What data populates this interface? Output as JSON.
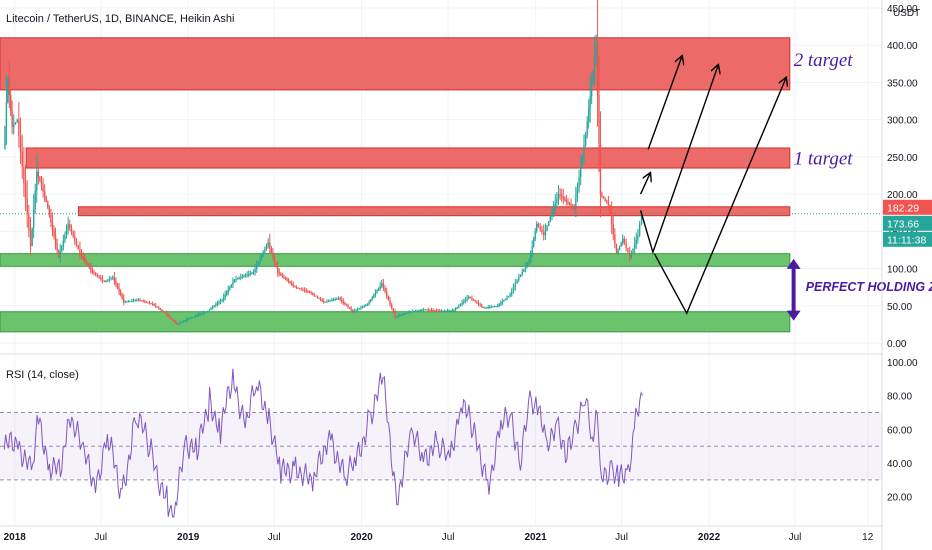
{
  "chart_data": [
    {
      "type": "candlestick",
      "title": "Litecoin / TetherUS, 1D, BINANCE, Heikin Ashi",
      "y_unit": "USDT",
      "ylim": [
        0,
        450
      ],
      "y_ticks": [
        "450.00",
        "400.00",
        "350.00",
        "300.00",
        "250.00",
        "200.00",
        "150.00",
        "100.00",
        "50.00",
        "0.00"
      ],
      "y_tick_values": [
        450,
        400,
        350,
        300,
        250,
        200,
        150,
        100,
        50,
        0
      ],
      "x_ticks": [
        "2018",
        "Jul",
        "2019",
        "Jul",
        "2020",
        "Jul",
        "2021",
        "Jul",
        "2022",
        "Jul",
        "12"
      ],
      "x_tick_values": [
        "2018-01-01",
        "2018-07-01",
        "2019-01-01",
        "2019-07-01",
        "2020-01-01",
        "2020-07-01",
        "2021-01-01",
        "2021-07-01",
        "2022-01-01",
        "2022-07-01",
        "2022-12-01"
      ],
      "xlim": [
        "2017-12-01",
        "2022-12-31"
      ],
      "price_path": [
        {
          "x": "2017-12-10",
          "y": 260
        },
        {
          "x": "2017-12-19",
          "y": 355
        },
        {
          "x": "2017-12-28",
          "y": 290
        },
        {
          "x": "2018-01-08",
          "y": 300
        },
        {
          "x": "2018-02-05",
          "y": 130
        },
        {
          "x": "2018-02-18",
          "y": 230
        },
        {
          "x": "2018-03-10",
          "y": 190
        },
        {
          "x": "2018-04-05",
          "y": 115
        },
        {
          "x": "2018-04-25",
          "y": 160
        },
        {
          "x": "2018-05-20",
          "y": 120
        },
        {
          "x": "2018-06-15",
          "y": 95
        },
        {
          "x": "2018-07-10",
          "y": 82
        },
        {
          "x": "2018-07-28",
          "y": 88
        },
        {
          "x": "2018-08-20",
          "y": 55
        },
        {
          "x": "2018-09-20",
          "y": 58
        },
        {
          "x": "2018-10-20",
          "y": 52
        },
        {
          "x": "2018-11-15",
          "y": 40
        },
        {
          "x": "2018-12-10",
          "y": 25
        },
        {
          "x": "2019-01-05",
          "y": 33
        },
        {
          "x": "2019-02-10",
          "y": 42
        },
        {
          "x": "2019-03-15",
          "y": 58
        },
        {
          "x": "2019-04-10",
          "y": 85
        },
        {
          "x": "2019-05-20",
          "y": 95
        },
        {
          "x": "2019-06-20",
          "y": 135
        },
        {
          "x": "2019-07-10",
          "y": 95
        },
        {
          "x": "2019-08-15",
          "y": 75
        },
        {
          "x": "2019-09-15",
          "y": 68
        },
        {
          "x": "2019-10-15",
          "y": 55
        },
        {
          "x": "2019-11-15",
          "y": 60
        },
        {
          "x": "2019-12-15",
          "y": 42
        },
        {
          "x": "2020-01-15",
          "y": 52
        },
        {
          "x": "2020-02-14",
          "y": 80
        },
        {
          "x": "2020-03-13",
          "y": 35
        },
        {
          "x": "2020-04-15",
          "y": 42
        },
        {
          "x": "2020-05-15",
          "y": 45
        },
        {
          "x": "2020-06-15",
          "y": 43
        },
        {
          "x": "2020-07-15",
          "y": 44
        },
        {
          "x": "2020-08-15",
          "y": 62
        },
        {
          "x": "2020-09-15",
          "y": 47
        },
        {
          "x": "2020-10-15",
          "y": 50
        },
        {
          "x": "2020-11-10",
          "y": 65
        },
        {
          "x": "2020-11-25",
          "y": 85
        },
        {
          "x": "2020-12-20",
          "y": 110
        },
        {
          "x": "2021-01-05",
          "y": 160
        },
        {
          "x": "2021-01-20",
          "y": 145
        },
        {
          "x": "2021-02-20",
          "y": 200
        },
        {
          "x": "2021-03-25",
          "y": 180
        },
        {
          "x": "2021-04-18",
          "y": 280
        },
        {
          "x": "2021-05-10",
          "y": 400
        },
        {
          "x": "2021-05-19",
          "y": 200
        },
        {
          "x": "2021-06-05",
          "y": 185
        },
        {
          "x": "2021-06-22",
          "y": 120
        },
        {
          "x": "2021-07-05",
          "y": 140
        },
        {
          "x": "2021-07-20",
          "y": 115
        },
        {
          "x": "2021-08-06",
          "y": 145
        },
        {
          "x": "2021-08-14",
          "y": 175
        }
      ],
      "zones": [
        {
          "type": "resistance",
          "x_start": "2017-12-01",
          "x_end": "2022-06-20",
          "y_low": 340,
          "y_high": 410
        },
        {
          "type": "resistance",
          "x_start": "2018-01-25",
          "x_end": "2022-06-20",
          "y_low": 235,
          "y_high": 262
        },
        {
          "type": "resistance",
          "x_start": "2018-05-15",
          "x_end": "2022-06-20",
          "y_low": 171,
          "y_high": 183
        },
        {
          "type": "support",
          "x_start": "2017-12-01",
          "x_end": "2022-06-20",
          "y_low": 103,
          "y_high": 120
        },
        {
          "type": "support",
          "x_start": "2017-12-01",
          "x_end": "2022-06-20",
          "y_low": 15,
          "y_high": 42
        }
      ],
      "projection_arrows": [
        [
          {
            "x": "2021-08-10",
            "y": 200
          },
          {
            "x": "2021-08-30",
            "y": 228
          }
        ],
        [
          {
            "x": "2021-08-26",
            "y": 260
          },
          {
            "x": "2021-11-05",
            "y": 385
          }
        ],
        [
          {
            "x": "2021-08-10",
            "y": 178
          },
          {
            "x": "2021-09-05",
            "y": 122
          },
          {
            "x": "2022-01-20",
            "y": 373
          }
        ],
        [
          {
            "x": "2021-09-08",
            "y": 120
          },
          {
            "x": "2021-11-15",
            "y": 40
          },
          {
            "x": "2022-06-12",
            "y": 356
          }
        ]
      ],
      "annotations": [
        {
          "text": "2 target",
          "x": "2022-06-28",
          "y": 380
        },
        {
          "text": "1 target",
          "x": "2022-06-28",
          "y": 248
        },
        {
          "text": "PERFECT HOLDING ZONE",
          "x": "2022-07-15",
          "y": 75
        }
      ],
      "holding_zone_arrow": {
        "x": "2022-06-28",
        "y_from": 30,
        "y_to": 113
      },
      "price_labels": [
        {
          "value": "182.29",
          "price": 182.29,
          "color": "#f05350"
        },
        {
          "value": "173.66",
          "price": 173.66,
          "color": "#26a69a"
        },
        {
          "value": "11:11:38",
          "price": 160,
          "color": "#26a69a"
        }
      ],
      "last_price_line": 173.66
    },
    {
      "type": "line",
      "title": "RSI (14, close)",
      "ylim": [
        5,
        100
      ],
      "y_ticks": [
        "100.00",
        "80.00",
        "60.00",
        "40.00",
        "20.00"
      ],
      "y_tick_values": [
        100,
        80,
        60,
        40,
        20
      ],
      "bands": [
        70,
        50,
        30
      ],
      "series": [
        {
          "values": [
            {
              "x": "2017-12-10",
              "y": 48
            },
            {
              "x": "2018-01-05",
              "y": 55
            },
            {
              "x": "2018-02-05",
              "y": 33
            },
            {
              "x": "2018-02-20",
              "y": 65
            },
            {
              "x": "2018-03-15",
              "y": 40
            },
            {
              "x": "2018-04-10",
              "y": 32
            },
            {
              "x": "2018-04-25",
              "y": 72
            },
            {
              "x": "2018-05-25",
              "y": 45
            },
            {
              "x": "2018-06-20",
              "y": 28
            },
            {
              "x": "2018-07-15",
              "y": 55
            },
            {
              "x": "2018-08-15",
              "y": 22
            },
            {
              "x": "2018-09-15",
              "y": 70
            },
            {
              "x": "2018-10-15",
              "y": 45
            },
            {
              "x": "2018-11-20",
              "y": 15
            },
            {
              "x": "2018-12-05",
              "y": 10
            },
            {
              "x": "2018-12-25",
              "y": 55
            },
            {
              "x": "2019-01-20",
              "y": 45
            },
            {
              "x": "2019-02-15",
              "y": 78
            },
            {
              "x": "2019-03-10",
              "y": 60
            },
            {
              "x": "2019-04-05",
              "y": 90
            },
            {
              "x": "2019-05-01",
              "y": 65
            },
            {
              "x": "2019-05-25",
              "y": 85
            },
            {
              "x": "2019-06-20",
              "y": 70
            },
            {
              "x": "2019-07-15",
              "y": 32
            },
            {
              "x": "2019-08-15",
              "y": 40
            },
            {
              "x": "2019-09-20",
              "y": 25
            },
            {
              "x": "2019-10-25",
              "y": 60
            },
            {
              "x": "2019-11-25",
              "y": 30
            },
            {
              "x": "2019-12-20",
              "y": 40
            },
            {
              "x": "2020-01-20",
              "y": 70
            },
            {
              "x": "2020-02-15",
              "y": 88
            },
            {
              "x": "2020-03-15",
              "y": 20
            },
            {
              "x": "2020-04-15",
              "y": 55
            },
            {
              "x": "2020-05-10",
              "y": 45
            },
            {
              "x": "2020-06-10",
              "y": 50
            },
            {
              "x": "2020-07-05",
              "y": 40
            },
            {
              "x": "2020-07-28",
              "y": 80
            },
            {
              "x": "2020-08-25",
              "y": 55
            },
            {
              "x": "2020-09-25",
              "y": 30
            },
            {
              "x": "2020-10-20",
              "y": 60
            },
            {
              "x": "2020-11-10",
              "y": 70
            },
            {
              "x": "2020-11-30",
              "y": 40
            },
            {
              "x": "2020-12-20",
              "y": 75
            },
            {
              "x": "2021-01-05",
              "y": 78
            },
            {
              "x": "2021-01-25",
              "y": 45
            },
            {
              "x": "2021-02-15",
              "y": 70
            },
            {
              "x": "2021-03-05",
              "y": 40
            },
            {
              "x": "2021-03-25",
              "y": 62
            },
            {
              "x": "2021-04-15",
              "y": 80
            },
            {
              "x": "2021-04-30",
              "y": 50
            },
            {
              "x": "2021-05-08",
              "y": 75
            },
            {
              "x": "2021-05-20",
              "y": 30
            },
            {
              "x": "2021-06-10",
              "y": 40
            },
            {
              "x": "2021-06-25",
              "y": 28
            },
            {
              "x": "2021-07-15",
              "y": 38
            },
            {
              "x": "2021-07-28",
              "y": 60
            },
            {
              "x": "2021-08-14",
              "y": 80
            }
          ]
        }
      ],
      "x_ticks": [
        "2018",
        "Jul",
        "2019",
        "Jul",
        "2020",
        "Jul",
        "2021",
        "Jul",
        "2022",
        "Jul",
        "12"
      ]
    }
  ]
}
